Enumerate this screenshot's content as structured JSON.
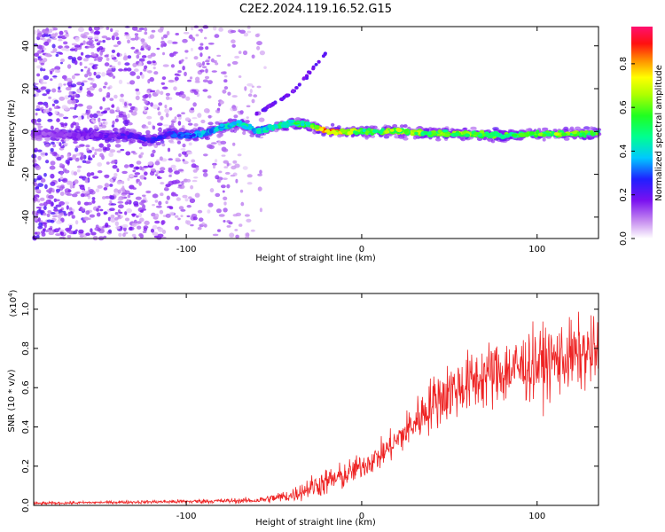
{
  "title": "C2E2.2024.119.16.52.G15",
  "chart_data": [
    {
      "type": "heatmap",
      "xlabel": "Height of straight line (km)",
      "ylabel": "Frequency (Hz)",
      "xlim": [
        -187,
        135
      ],
      "ylim": [
        -50,
        49
      ],
      "xticks": [
        -100,
        0,
        100
      ],
      "yticks": [
        -40,
        -20,
        0,
        20,
        40
      ],
      "colorbar": {
        "label": "Normalized spectral amplitude",
        "range": [
          0,
          0.97
        ],
        "ticks": [
          0.0,
          0.2,
          0.4,
          0.6,
          0.8
        ],
        "colormap": "rainbow (white-violet-blue-cyan-green-yellow-red-pink)"
      },
      "ridge": {
        "x": [
          -187,
          -150,
          -130,
          -120,
          -110,
          -100,
          -90,
          -80,
          -70,
          -60,
          -50,
          -40,
          -30,
          -20,
          -10,
          0,
          20,
          40,
          60,
          80,
          100,
          120,
          135
        ],
        "freq": [
          -1,
          -2,
          -2,
          -4,
          -1,
          -2,
          -1,
          2,
          4,
          0,
          2,
          4,
          3,
          0,
          0,
          0,
          0,
          -1,
          -1,
          -2,
          -1,
          -1,
          -1
        ],
        "amplitude": [
          0.15,
          0.2,
          0.25,
          0.3,
          0.3,
          0.35,
          0.4,
          0.45,
          0.5,
          0.45,
          0.5,
          0.55,
          0.6,
          0.95,
          0.8,
          0.6,
          0.7,
          0.65,
          0.7,
          0.6,
          0.65,
          0.7,
          0.6
        ]
      },
      "branch": {
        "x": [
          -60,
          -50,
          -40,
          -30,
          -20
        ],
        "freq": [
          8,
          13,
          18,
          27,
          37
        ]
      }
    },
    {
      "type": "line",
      "xlabel": "Height of straight line (km)",
      "ylabel": "SNR (10 * v/v)",
      "yscale_label": "(x10",
      "yscale_exp": "4",
      "xlim": [
        -187,
        135
      ],
      "ylim": [
        0,
        1.08
      ],
      "xticks": [
        -100,
        0,
        100
      ],
      "yticks": [
        0.0,
        0.2,
        0.4,
        0.6,
        0.8,
        1.0
      ],
      "color": "#ee2222",
      "envelope": {
        "x": [
          -187,
          -150,
          -100,
          -60,
          -40,
          -30,
          -20,
          -10,
          0,
          10,
          20,
          30,
          40,
          50,
          60,
          70,
          80,
          90,
          100,
          110,
          120,
          135
        ],
        "mean": [
          0.01,
          0.015,
          0.02,
          0.025,
          0.05,
          0.09,
          0.12,
          0.15,
          0.2,
          0.25,
          0.33,
          0.42,
          0.52,
          0.58,
          0.62,
          0.66,
          0.68,
          0.7,
          0.72,
          0.74,
          0.76,
          0.78
        ],
        "spread": [
          0.01,
          0.01,
          0.015,
          0.02,
          0.05,
          0.08,
          0.1,
          0.1,
          0.09,
          0.1,
          0.12,
          0.16,
          0.2,
          0.22,
          0.22,
          0.24,
          0.25,
          0.25,
          0.26,
          0.26,
          0.26,
          0.25
        ]
      }
    }
  ]
}
